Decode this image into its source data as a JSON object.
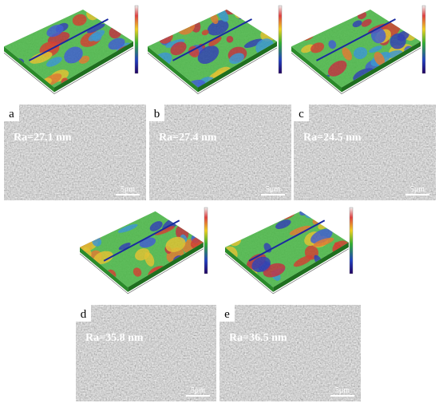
{
  "panels": [
    {
      "label": "a",
      "roughness": "Ra=27.1 nm",
      "scale_bar": "5μm"
    },
    {
      "label": "b",
      "roughness": "Ra=27.4 nm",
      "scale_bar": "5μm"
    },
    {
      "label": "c",
      "roughness": "Ra=24.5 nm",
      "scale_bar": "5μm"
    },
    {
      "label": "d",
      "roughness": "Ra=35.8 nm",
      "scale_bar": "5μm"
    },
    {
      "label": "e",
      "roughness": "Ra=36.5 nm",
      "scale_bar": "5μm"
    }
  ]
}
